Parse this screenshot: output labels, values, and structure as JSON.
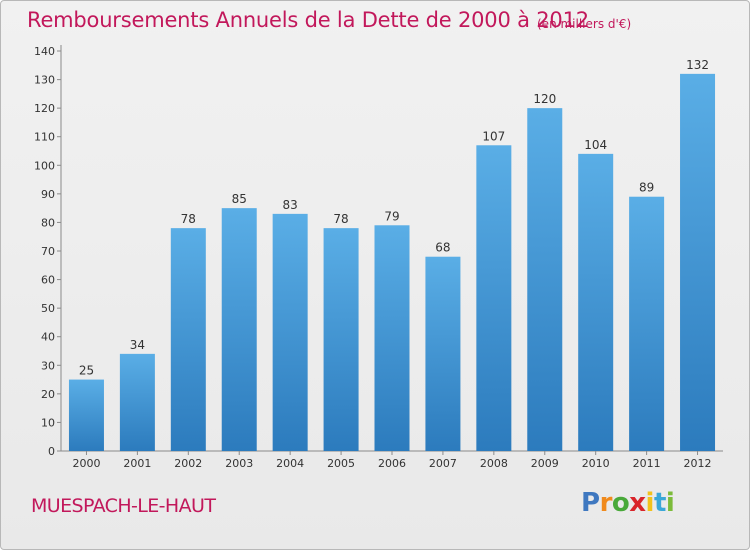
{
  "header": {
    "title": "Remboursements Annuels de la Dette de 2000 à 2012",
    "unit": "(en milliers d'€)"
  },
  "footer": {
    "commune": "MUESPACH-LE-HAUT",
    "logo": [
      "P",
      "r",
      "o",
      "x",
      "i",
      "t",
      "i"
    ]
  },
  "colors": {
    "title": "#c2185b",
    "bar_top": "#5aaee6",
    "bar_bottom": "#2c7bbd",
    "logo": [
      "#3f78c0",
      "#f08a1c",
      "#49a93a",
      "#d9242a",
      "#f2c21b",
      "#3aa7d8",
      "#7cbb3a"
    ]
  },
  "chart_data": {
    "type": "bar",
    "categories": [
      "2000",
      "2001",
      "2002",
      "2003",
      "2004",
      "2005",
      "2006",
      "2007",
      "2008",
      "2009",
      "2010",
      "2011",
      "2012"
    ],
    "values": [
      25,
      34,
      78,
      85,
      83,
      78,
      79,
      68,
      107,
      120,
      104,
      89,
      132
    ],
    "ylim": [
      0,
      140
    ],
    "yticks": [
      0,
      10,
      20,
      30,
      40,
      50,
      60,
      70,
      80,
      90,
      100,
      110,
      120,
      130,
      140
    ],
    "grid": false,
    "data_labels": true
  }
}
